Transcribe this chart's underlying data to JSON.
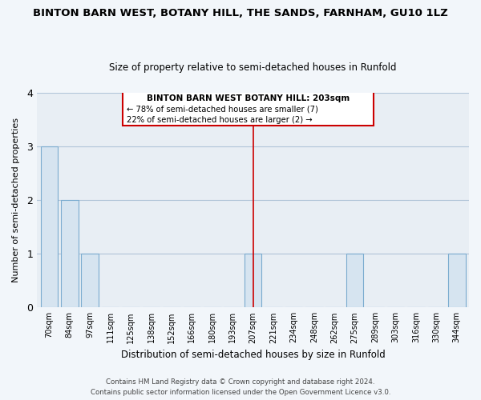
{
  "title": "BINTON BARN WEST, BOTANY HILL, THE SANDS, FARNHAM, GU10 1LZ",
  "subtitle": "Size of property relative to semi-detached houses in Runfold",
  "xlabel": "Distribution of semi-detached houses by size in Runfold",
  "ylabel": "Number of semi-detached properties",
  "categories": [
    "70sqm",
    "84sqm",
    "97sqm",
    "111sqm",
    "125sqm",
    "138sqm",
    "152sqm",
    "166sqm",
    "180sqm",
    "193sqm",
    "207sqm",
    "221sqm",
    "234sqm",
    "248sqm",
    "262sqm",
    "275sqm",
    "289sqm",
    "303sqm",
    "316sqm",
    "330sqm",
    "344sqm"
  ],
  "values": [
    3,
    2,
    1,
    0,
    0,
    0,
    0,
    0,
    0,
    0,
    1,
    0,
    0,
    0,
    0,
    1,
    0,
    0,
    0,
    0,
    1
  ],
  "bar_color": "#d6e4f0",
  "bar_edgecolor": "#7aabcf",
  "vline_color": "#cc0000",
  "vline_index": 10,
  "annotation_title": "BINTON BARN WEST BOTANY HILL: 203sqm",
  "annotation_line1": "← 78% of semi-detached houses are smaller (7)",
  "annotation_line2": "22% of semi-detached houses are larger (2) →",
  "footer1": "Contains HM Land Registry data © Crown copyright and database right 2024.",
  "footer2": "Contains public sector information licensed under the Open Government Licence v3.0.",
  "ylim": [
    0,
    4
  ],
  "background_color": "#f2f6fa",
  "plot_bg_color": "#e8eef4",
  "grid_color": "#b0c4d8",
  "ann_box_color": "#cc0000",
  "ann_box_facecolor": "#ffffff"
}
